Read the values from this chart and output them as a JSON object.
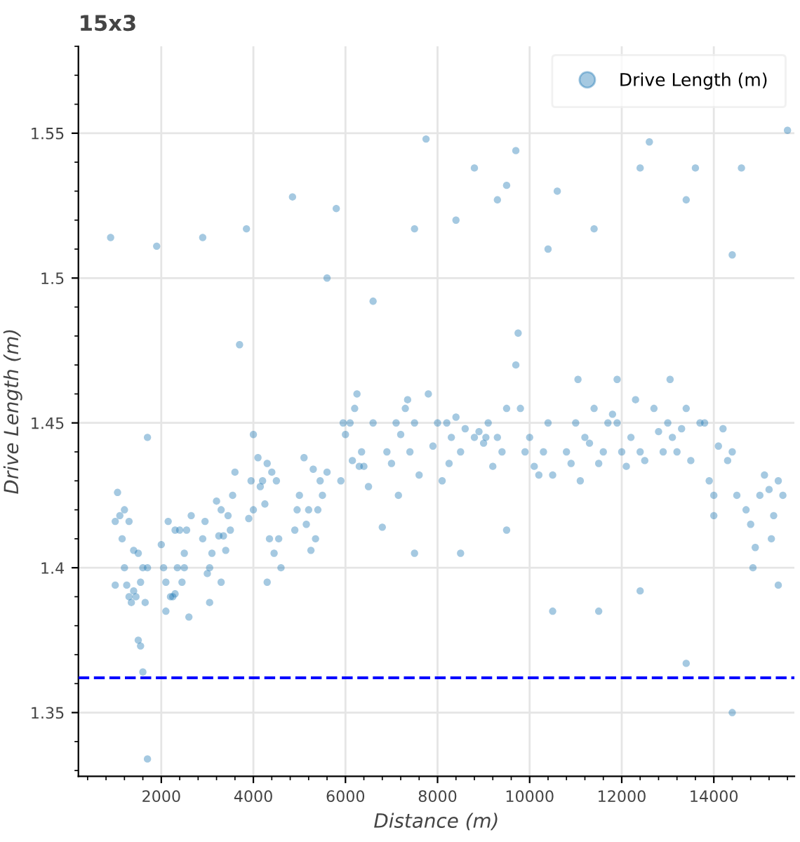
{
  "chart_data": {
    "type": "scatter",
    "title": "15x3",
    "xlabel": "Distance (m)",
    "ylabel": "Drive Length (m)",
    "xlim": [
      200,
      15750
    ],
    "ylim": [
      1.328,
      1.58
    ],
    "xticks": [
      2000,
      4000,
      6000,
      8000,
      10000,
      12000,
      14000
    ],
    "yticks": [
      1.35,
      1.4,
      1.45,
      1.5,
      1.55
    ],
    "grid": true,
    "legend": "top right",
    "marker": "circle",
    "ref_lines": [
      {
        "axis": "y",
        "value": 1.362,
        "color": "#0000ff",
        "line_style": "dashed"
      }
    ],
    "series": [
      {
        "name": "Drive Length (m)",
        "color": "#1f77b4",
        "x": [
          900,
          1900,
          2900,
          3850,
          4850,
          5800,
          5600,
          6600,
          3700,
          7750,
          7500,
          8400,
          8800,
          9500,
          9700,
          9300,
          10400,
          10600,
          11400,
          12600,
          12400,
          13400,
          13600,
          14600,
          15600,
          14400,
          1700,
          1700,
          1600,
          1500,
          1550,
          14400,
          13400,
          10500,
          11500,
          12400,
          15400,
          7500,
          8500,
          9500,
          6800,
          1000,
          1050,
          1100,
          1150,
          1200,
          1250,
          1300,
          1350,
          1400,
          1450,
          1500,
          1550,
          1600,
          1650,
          1700,
          1000,
          1200,
          1400,
          1300,
          2000,
          2050,
          2100,
          2150,
          2200,
          2250,
          2300,
          2350,
          2400,
          2450,
          2500,
          2550,
          2600,
          2650,
          2100,
          2300,
          2500,
          2900,
          2950,
          3000,
          3050,
          3100,
          3200,
          3250,
          3300,
          3350,
          3400,
          3450,
          3500,
          3550,
          3600,
          3050,
          3300,
          3900,
          3950,
          4000,
          4100,
          4150,
          4200,
          4250,
          4300,
          4350,
          4400,
          4450,
          4500,
          4550,
          4600,
          4300,
          4000,
          4900,
          4950,
          5000,
          5100,
          5150,
          5200,
          5300,
          5350,
          5400,
          5450,
          5500,
          5600,
          5250,
          5900,
          5950,
          6000,
          6100,
          6150,
          6200,
          6300,
          6350,
          6400,
          6500,
          6600,
          6250,
          6900,
          7000,
          7100,
          7200,
          7300,
          7400,
          7500,
          7600,
          7150,
          7350,
          7800,
          7900,
          8000,
          8100,
          8200,
          8300,
          8400,
          8500,
          8600,
          8250,
          8800,
          8900,
          9000,
          9100,
          9200,
          9300,
          9400,
          9500,
          9050,
          9700,
          9800,
          9900,
          10000,
          10100,
          10200,
          10300,
          10400,
          10500,
          9750,
          10800,
          10900,
          11000,
          11100,
          11200,
          11300,
          11400,
          11500,
          11600,
          11050,
          11700,
          11800,
          11900,
          12000,
          12100,
          12200,
          12300,
          12400,
          12500,
          11900,
          12700,
          12800,
          12900,
          13000,
          13100,
          13200,
          13300,
          13400,
          13500,
          13050,
          13700,
          13800,
          13900,
          14000,
          14100,
          14200,
          14300,
          14400,
          14500,
          14000,
          14700,
          14800,
          14900,
          15000,
          15100,
          15200,
          15300,
          15400,
          15500,
          14850,
          15250
        ],
        "values": [
          1.514,
          1.511,
          1.514,
          1.517,
          1.528,
          1.524,
          1.5,
          1.492,
          1.477,
          1.548,
          1.517,
          1.52,
          1.538,
          1.532,
          1.544,
          1.527,
          1.51,
          1.53,
          1.517,
          1.547,
          1.538,
          1.527,
          1.538,
          1.538,
          1.551,
          1.508,
          1.445,
          1.334,
          1.364,
          1.375,
          1.373,
          1.35,
          1.367,
          1.385,
          1.385,
          1.392,
          1.394,
          1.405,
          1.405,
          1.413,
          1.414,
          1.416,
          1.426,
          1.418,
          1.41,
          1.4,
          1.394,
          1.39,
          1.388,
          1.392,
          1.39,
          1.405,
          1.395,
          1.4,
          1.388,
          1.4,
          1.394,
          1.42,
          1.406,
          1.416,
          1.408,
          1.4,
          1.395,
          1.416,
          1.39,
          1.39,
          1.413,
          1.4,
          1.413,
          1.395,
          1.405,
          1.413,
          1.383,
          1.418,
          1.385,
          1.391,
          1.4,
          1.41,
          1.416,
          1.398,
          1.388,
          1.405,
          1.423,
          1.411,
          1.395,
          1.411,
          1.406,
          1.418,
          1.413,
          1.425,
          1.433,
          1.4,
          1.42,
          1.417,
          1.43,
          1.42,
          1.438,
          1.428,
          1.43,
          1.422,
          1.436,
          1.41,
          1.433,
          1.405,
          1.43,
          1.41,
          1.4,
          1.395,
          1.446,
          1.413,
          1.42,
          1.425,
          1.438,
          1.415,
          1.42,
          1.434,
          1.41,
          1.42,
          1.43,
          1.425,
          1.433,
          1.406,
          1.43,
          1.45,
          1.446,
          1.45,
          1.437,
          1.455,
          1.435,
          1.44,
          1.435,
          1.428,
          1.45,
          1.46,
          1.44,
          1.436,
          1.45,
          1.446,
          1.455,
          1.44,
          1.45,
          1.432,
          1.425,
          1.458,
          1.46,
          1.442,
          1.45,
          1.43,
          1.45,
          1.445,
          1.452,
          1.44,
          1.448,
          1.436,
          1.445,
          1.447,
          1.443,
          1.45,
          1.435,
          1.445,
          1.44,
          1.455,
          1.445,
          1.47,
          1.455,
          1.44,
          1.445,
          1.435,
          1.432,
          1.44,
          1.45,
          1.432,
          1.481,
          1.44,
          1.436,
          1.45,
          1.43,
          1.445,
          1.443,
          1.455,
          1.436,
          1.44,
          1.465,
          1.45,
          1.453,
          1.45,
          1.44,
          1.435,
          1.445,
          1.458,
          1.44,
          1.437,
          1.465,
          1.455,
          1.447,
          1.44,
          1.45,
          1.445,
          1.44,
          1.448,
          1.455,
          1.437,
          1.465,
          1.45,
          1.45,
          1.43,
          1.425,
          1.442,
          1.448,
          1.437,
          1.44,
          1.425,
          1.418,
          1.42,
          1.415,
          1.407,
          1.425,
          1.432,
          1.427,
          1.418,
          1.43,
          1.425,
          1.4,
          1.41
        ]
      }
    ]
  }
}
